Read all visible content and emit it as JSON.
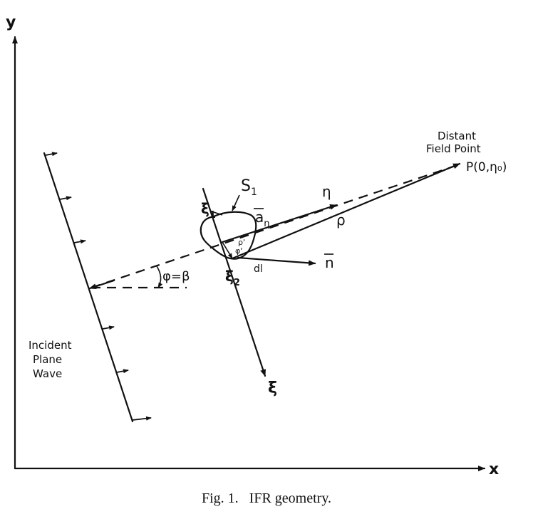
{
  "axes": {
    "y_label": "y",
    "x_label": "x"
  },
  "labels": {
    "distant_line1": "Distant",
    "distant_line2": "Field Point",
    "point_p": "P(0,η₀)",
    "s1": "S",
    "s1_sub": "1",
    "xi1": "ξ",
    "xi1_sub": "1",
    "xi2": "ξ",
    "xi2_sub": "2",
    "eta": "η",
    "a_eta": "a",
    "a_eta_sub": "η",
    "rho": "ρ",
    "rho_small": "ρ'",
    "phi_small": "φ'",
    "normal": "n",
    "dl": "dl",
    "angle": "φ=β",
    "xi": "ξ",
    "incident_line1": "Incident",
    "incident_line2": "Plane",
    "incident_line3": "Wave"
  },
  "caption": "Fig. 1.   IFR geometry.",
  "colors": {
    "ink": "#111111",
    "background": "#ffffff"
  }
}
